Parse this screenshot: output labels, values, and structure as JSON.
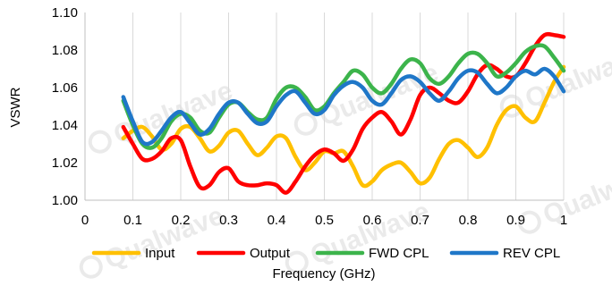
{
  "chart_data": {
    "type": "line",
    "title": "",
    "xlabel": "Frequency (GHz)",
    "ylabel": "VSWR",
    "xlim": [
      0,
      1
    ],
    "ylim": [
      1.0,
      1.1
    ],
    "x_ticks": [
      "0",
      "0.1",
      "0.2",
      "0.3",
      "0.4",
      "0.5",
      "0.6",
      "0.7",
      "0.8",
      "0.9",
      "1"
    ],
    "y_ticks": [
      "1.00",
      "1.02",
      "1.04",
      "1.06",
      "1.08",
      "1.10"
    ],
    "grid": "vertical",
    "legend_position": "bottom",
    "watermark": "Qualwave",
    "x": [
      0.08,
      0.1,
      0.12,
      0.14,
      0.16,
      0.18,
      0.2,
      0.22,
      0.24,
      0.26,
      0.28,
      0.3,
      0.32,
      0.34,
      0.36,
      0.38,
      0.4,
      0.42,
      0.44,
      0.46,
      0.48,
      0.5,
      0.52,
      0.54,
      0.56,
      0.58,
      0.6,
      0.62,
      0.64,
      0.66,
      0.68,
      0.7,
      0.72,
      0.74,
      0.76,
      0.78,
      0.8,
      0.82,
      0.84,
      0.86,
      0.88,
      0.9,
      0.92,
      0.94,
      0.96,
      0.98,
      1.0
    ],
    "series": [
      {
        "name": "Input",
        "color": "#FFC000",
        "values": [
          1.033,
          1.037,
          1.039,
          1.034,
          1.027,
          1.03,
          1.038,
          1.039,
          1.033,
          1.026,
          1.029,
          1.036,
          1.037,
          1.03,
          1.024,
          1.028,
          1.034,
          1.033,
          1.023,
          1.016,
          1.02,
          1.026,
          1.025,
          1.026,
          1.018,
          1.008,
          1.01,
          1.016,
          1.019,
          1.02,
          1.015,
          1.009,
          1.012,
          1.022,
          1.03,
          1.032,
          1.028,
          1.023,
          1.028,
          1.04,
          1.048,
          1.05,
          1.044,
          1.042,
          1.052,
          1.063,
          1.071
        ]
      },
      {
        "name": "Output",
        "color": "#FF0000",
        "values": [
          1.039,
          1.03,
          1.022,
          1.022,
          1.026,
          1.033,
          1.032,
          1.018,
          1.007,
          1.008,
          1.015,
          1.017,
          1.01,
          1.008,
          1.008,
          1.009,
          1.008,
          1.004,
          1.01,
          1.018,
          1.024,
          1.027,
          1.025,
          1.021,
          1.027,
          1.038,
          1.044,
          1.047,
          1.042,
          1.035,
          1.043,
          1.056,
          1.06,
          1.057,
          1.053,
          1.052,
          1.058,
          1.067,
          1.072,
          1.07,
          1.066,
          1.066,
          1.073,
          1.082,
          1.088,
          1.088,
          1.087
        ]
      },
      {
        "name": "FWD CPL",
        "color": "#3CB44B",
        "values": [
          1.053,
          1.04,
          1.03,
          1.028,
          1.033,
          1.042,
          1.046,
          1.044,
          1.037,
          1.036,
          1.044,
          1.051,
          1.052,
          1.047,
          1.043,
          1.044,
          1.054,
          1.06,
          1.06,
          1.055,
          1.048,
          1.05,
          1.057,
          1.063,
          1.069,
          1.067,
          1.06,
          1.057,
          1.062,
          1.07,
          1.075,
          1.073,
          1.065,
          1.062,
          1.066,
          1.073,
          1.078,
          1.078,
          1.073,
          1.066,
          1.068,
          1.073,
          1.079,
          1.082,
          1.082,
          1.076,
          1.069
        ]
      },
      {
        "name": "REV CPL",
        "color": "#1F77C8",
        "values": [
          1.055,
          1.042,
          1.031,
          1.031,
          1.037,
          1.044,
          1.047,
          1.041,
          1.035,
          1.038,
          1.046,
          1.052,
          1.052,
          1.046,
          1.041,
          1.042,
          1.05,
          1.056,
          1.058,
          1.052,
          1.046,
          1.048,
          1.056,
          1.061,
          1.063,
          1.06,
          1.053,
          1.051,
          1.057,
          1.064,
          1.066,
          1.063,
          1.057,
          1.053,
          1.058,
          1.065,
          1.069,
          1.068,
          1.062,
          1.057,
          1.06,
          1.066,
          1.069,
          1.067,
          1.07,
          1.066,
          1.058
        ]
      }
    ]
  }
}
